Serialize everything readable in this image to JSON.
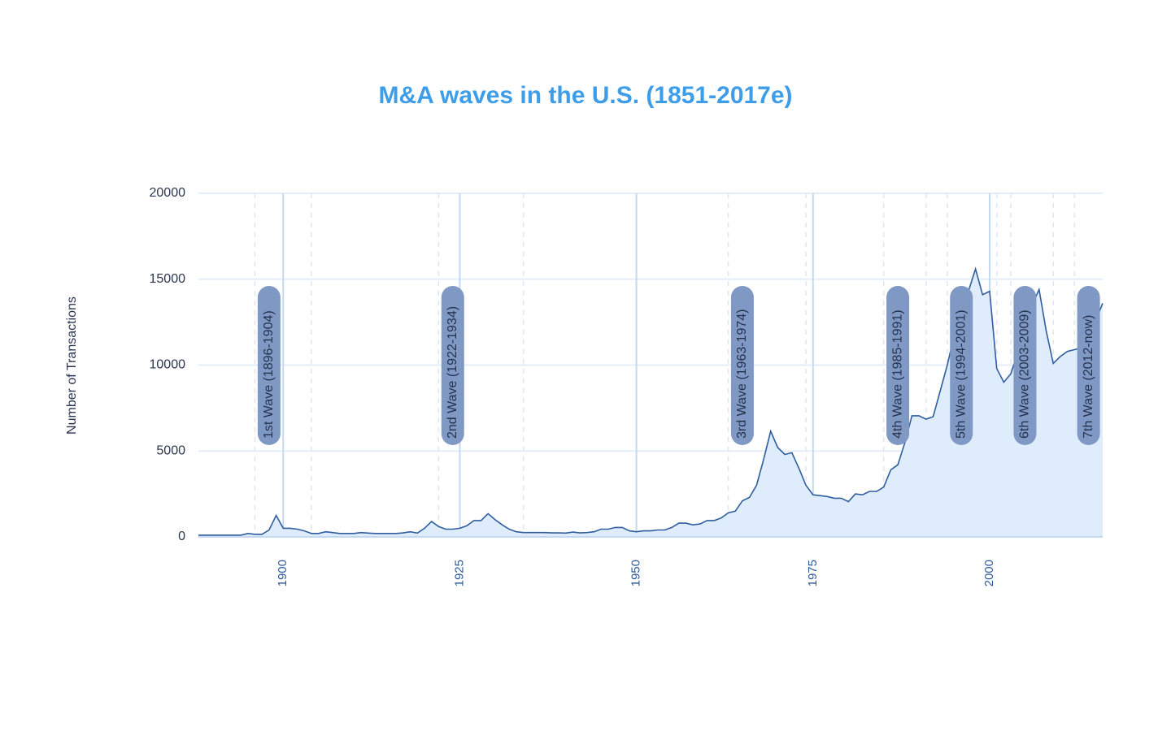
{
  "chart_data": {
    "type": "area",
    "title": "M&A waves in the U.S. (1851-2017e)",
    "y_label": "Number of Transactions",
    "x": [
      1888,
      1889,
      1890,
      1891,
      1892,
      1893,
      1894,
      1895,
      1896,
      1897,
      1898,
      1899,
      1900,
      1901,
      1902,
      1903,
      1904,
      1905,
      1906,
      1907,
      1908,
      1909,
      1910,
      1911,
      1912,
      1913,
      1914,
      1915,
      1916,
      1917,
      1918,
      1919,
      1920,
      1921,
      1922,
      1923,
      1924,
      1925,
      1926,
      1927,
      1928,
      1929,
      1930,
      1931,
      1932,
      1933,
      1934,
      1935,
      1936,
      1937,
      1938,
      1939,
      1940,
      1941,
      1942,
      1943,
      1944,
      1945,
      1946,
      1947,
      1948,
      1949,
      1950,
      1951,
      1952,
      1953,
      1954,
      1955,
      1956,
      1957,
      1958,
      1959,
      1960,
      1961,
      1962,
      1963,
      1964,
      1965,
      1966,
      1967,
      1968,
      1969,
      1970,
      1971,
      1972,
      1973,
      1974,
      1975,
      1976,
      1977,
      1978,
      1979,
      1980,
      1981,
      1982,
      1983,
      1984,
      1985,
      1986,
      1987,
      1988,
      1989,
      1990,
      1991,
      1992,
      1993,
      1994,
      1995,
      1996,
      1997,
      1998,
      1999,
      2000,
      2001,
      2002,
      2003,
      2004,
      2005,
      2006,
      2007,
      2008,
      2009,
      2010,
      2011,
      2012,
      2013,
      2014,
      2015,
      2016
    ],
    "values": [
      100,
      100,
      100,
      100,
      100,
      100,
      100,
      200,
      150,
      150,
      400,
      1250,
      500,
      500,
      450,
      350,
      200,
      200,
      300,
      250,
      200,
      200,
      200,
      250,
      220,
      200,
      200,
      200,
      200,
      230,
      300,
      220,
      500,
      900,
      600,
      450,
      450,
      500,
      650,
      950,
      950,
      1350,
      1000,
      700,
      450,
      300,
      250,
      250,
      250,
      250,
      230,
      230,
      220,
      280,
      230,
      250,
      300,
      450,
      450,
      550,
      550,
      350,
      300,
      350,
      350,
      400,
      400,
      550,
      800,
      800,
      700,
      750,
      950,
      950,
      1100,
      1400,
      1500,
      2100,
      2300,
      3000,
      4500,
      6150,
      5200,
      4800,
      4900,
      4000,
      3000,
      2450,
      2400,
      2350,
      2250,
      2250,
      2050,
      2500,
      2450,
      2650,
      2650,
      2900,
      3900,
      4200,
      5500,
      7050,
      7050,
      6850,
      7000,
      8500,
      10000,
      11800,
      13000,
      14300,
      15600,
      14100,
      14300,
      9800,
      9000,
      9500,
      10800,
      12000,
      13500,
      14400,
      12000,
      10100,
      10500,
      10800,
      10900,
      11000,
      12000,
      12600,
      13600
    ],
    "color": "#2f5d9e",
    "fill_color": "#deecfb",
    "xlim": [
      1888,
      2016
    ],
    "xticks": [
      1900,
      1925,
      1950,
      1975,
      2000
    ],
    "ylim": [
      0,
      20000
    ],
    "yticks": [
      0,
      5000,
      10000,
      15000,
      20000
    ],
    "grid": true,
    "waves": [
      {
        "label": "1st Wave (1896-1904)",
        "start": 1896,
        "end": 1904
      },
      {
        "label": "2nd Wave (1922-1934)",
        "start": 1922,
        "end": 1934
      },
      {
        "label": "3rd Wave (1963-1974)",
        "start": 1963,
        "end": 1974
      },
      {
        "label": "4th Wave (1985-1991)",
        "start": 1985,
        "end": 1991
      },
      {
        "label": "5th Wave (1994-2001)",
        "start": 1994,
        "end": 2001
      },
      {
        "label": "6th Wave (2003-2009)",
        "start": 2003,
        "end": 2009
      },
      {
        "label": "7th Wave (2012-now)",
        "start": 2012,
        "end": null
      }
    ]
  }
}
